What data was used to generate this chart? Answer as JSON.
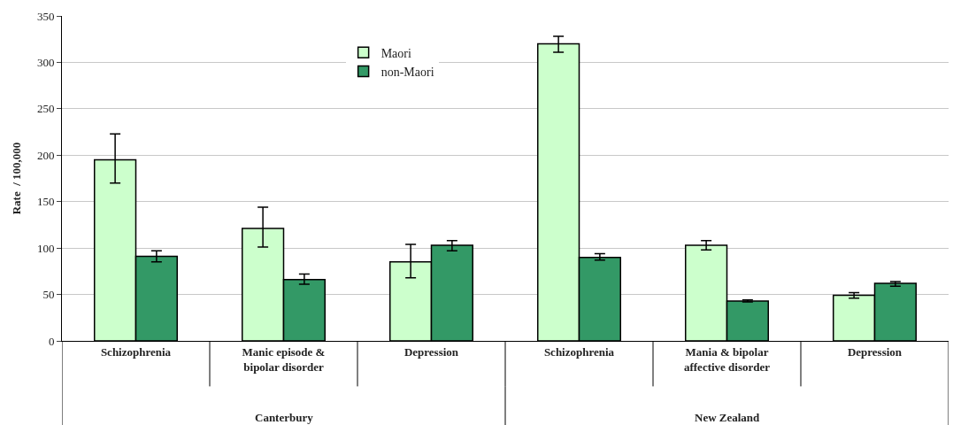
{
  "chart_data": {
    "type": "bar",
    "ylabel": "Rate  / 100,000",
    "categories": [
      "Schizophrenia",
      "Manic episode & bipolar disorder",
      "Depression",
      "Schizophrenia",
      "Mania & bipolar affective disorder",
      "Depression"
    ],
    "series": [
      {
        "name": "Maori",
        "color": "#ccffcc",
        "values": [
          195,
          121,
          85,
          320,
          103,
          49
        ],
        "errors": [
          [
            170,
            223
          ],
          [
            101,
            144
          ],
          [
            68,
            104
          ],
          [
            311,
            328
          ],
          [
            98,
            108
          ],
          [
            46,
            52
          ]
        ]
      },
      {
        "name": "non-Maori",
        "color": "#339966",
        "values": [
          91,
          66,
          103,
          90,
          43,
          62
        ],
        "errors": [
          [
            85,
            97
          ],
          [
            61,
            72
          ],
          [
            97,
            108
          ],
          [
            87,
            94
          ],
          [
            42,
            44
          ],
          [
            59,
            64
          ]
        ]
      }
    ],
    "annotations": [
      "Canterbury",
      "New Zealand"
    ],
    "ylim": [
      0,
      350
    ],
    "yticks": [
      0,
      50,
      100,
      150,
      200,
      250,
      300,
      350
    ],
    "grid": "y",
    "legend": "top"
  }
}
